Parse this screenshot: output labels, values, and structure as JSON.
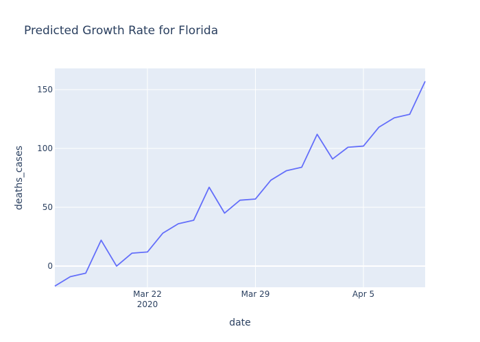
{
  "chart_data": {
    "type": "line",
    "title": "Predicted Growth Rate for Florida",
    "xlabel": "date",
    "ylabel": "deaths_cases",
    "x_ticks": [
      {
        "date": "2020-03-22",
        "label": "Mar 22",
        "sublabel": "2020"
      },
      {
        "date": "2020-03-29",
        "label": "Mar 29",
        "sublabel": ""
      },
      {
        "date": "2020-04-05",
        "label": "Apr 5",
        "sublabel": ""
      }
    ],
    "y_ticks": [
      0,
      50,
      100,
      150
    ],
    "xlim": [
      "2020-03-16",
      "2020-04-09"
    ],
    "ylim": [
      -18,
      168
    ],
    "grid": true,
    "colors": {
      "line": "#636efa",
      "plot_bg": "#e5ecf6",
      "grid": "#ffffff",
      "text": "#2a3f5f"
    },
    "series": [
      {
        "x": [
          "2020-03-16",
          "2020-03-17",
          "2020-03-18",
          "2020-03-19",
          "2020-03-20",
          "2020-03-21",
          "2020-03-22",
          "2020-03-23",
          "2020-03-24",
          "2020-03-25",
          "2020-03-26",
          "2020-03-27",
          "2020-03-28",
          "2020-03-29",
          "2020-03-30",
          "2020-03-31",
          "2020-04-01",
          "2020-04-02",
          "2020-04-03",
          "2020-04-04",
          "2020-04-05",
          "2020-04-06",
          "2020-04-07",
          "2020-04-08",
          "2020-04-09"
        ],
        "y": [
          -17,
          -9,
          -6,
          22,
          0,
          11,
          12,
          28,
          36,
          39,
          67,
          45,
          56,
          57,
          73,
          81,
          84,
          112,
          91,
          101,
          102,
          118,
          126,
          129,
          157
        ]
      }
    ]
  }
}
